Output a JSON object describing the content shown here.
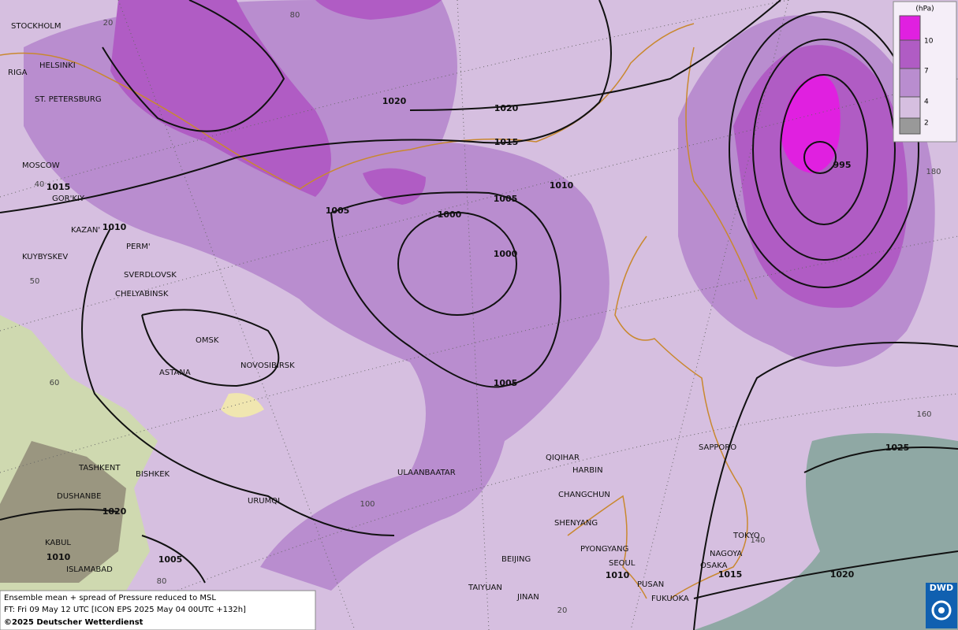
{
  "map": {
    "legend": {
      "unit": "(hPa)",
      "levels": [
        "10",
        "7",
        "4",
        "2"
      ]
    },
    "cities": [
      "STOCKHOLM",
      "HELSINKI",
      "RIGA",
      "ST. PETERSBURG",
      "MOSCOW",
      "GOR'KIY",
      "KAZAN'",
      "PERM'",
      "KUYBYSKEV",
      "SVERDLOVSK",
      "CHELYABINSK",
      "OMSK",
      "ASTANA",
      "NOVOSIBIRSK",
      "TASHKENT",
      "BISHKEK",
      "DUSHANBE",
      "URUMQI",
      "KABUL",
      "ISLAMABAD",
      "ULAANBAATAR",
      "QIQIHAR",
      "HARBIN",
      "CHANGCHUN",
      "SHENYANG",
      "PYONGYANG",
      "SEOUL",
      "BEIJING",
      "TAIYUAN",
      "JINAN",
      "PUSAN",
      "FUKUOKA",
      "OSAKA",
      "NAGOYA",
      "TOKYO",
      "SAPPORO"
    ],
    "isobar_labels": [
      "1020",
      "1020",
      "1015",
      "1015",
      "1010",
      "1005",
      "1005",
      "1000",
      "1000",
      "995",
      "1010",
      "1005",
      "1025",
      "1020",
      "1010",
      "1005",
      "1010",
      "1015",
      "1020"
    ],
    "graticule_labels": [
      "20",
      "80",
      "40",
      "50",
      "60",
      "100",
      "80",
      "20",
      "180",
      "160",
      "140"
    ],
    "footer": [
      "Ensemble mean + spread of Pressure reduced to MSL",
      "FT: Fri 09 May 12 UTC [ICON EPS 2025 May 04 00UTC +132h]",
      "©2025 Deutscher Wetterdienst"
    ],
    "logo": "DWD"
  }
}
